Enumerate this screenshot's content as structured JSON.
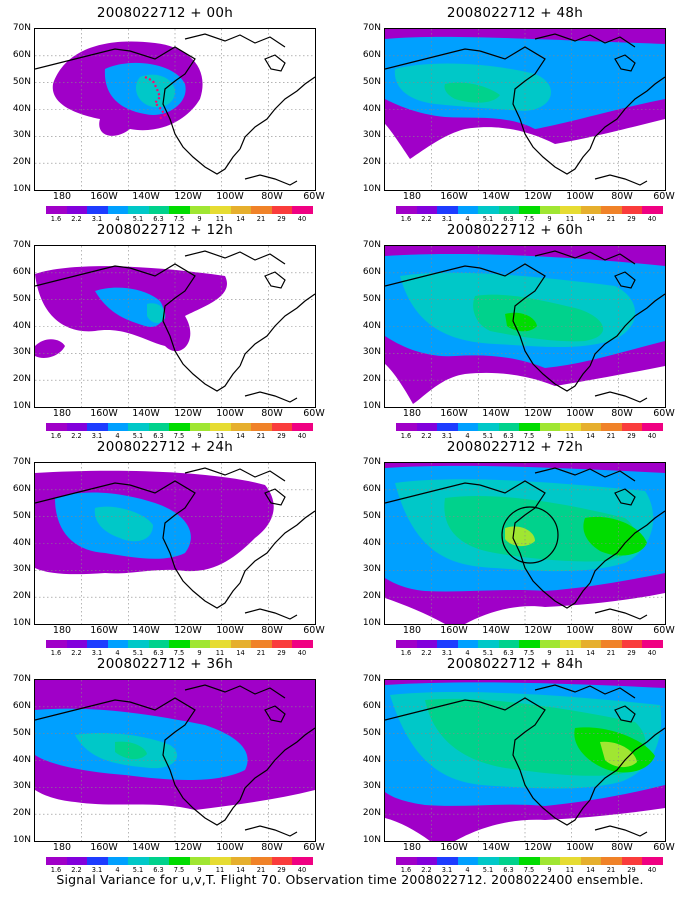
{
  "panels": [
    {
      "title": "2008022712 + 00h",
      "lead": 0
    },
    {
      "title": "2008022712 + 48h",
      "lead": 48
    },
    {
      "title": "2008022712 + 12h",
      "lead": 12
    },
    {
      "title": "2008022712 + 60h",
      "lead": 60
    },
    {
      "title": "2008022712 + 24h",
      "lead": 24
    },
    {
      "title": "2008022712 + 72h",
      "lead": 72
    },
    {
      "title": "2008022712 + 36h",
      "lead": 36
    },
    {
      "title": "2008022712 + 84h",
      "lead": 84
    }
  ],
  "lat_labels": [
    "70N",
    "60N",
    "50N",
    "40N",
    "30N",
    "20N",
    "10N"
  ],
  "lon_labels": [
    "180",
    "160W",
    "140W",
    "120W",
    "100W",
    "80W",
    "60W"
  ],
  "colorbar": {
    "labels": [
      "1.6",
      "2.2",
      "3.1",
      "4",
      "5.1",
      "6.3",
      "7.5",
      "9",
      "11",
      "14",
      "21",
      "29",
      "40"
    ],
    "colors": [
      "#a000c8",
      "#8200dc",
      "#1e3cff",
      "#00a0ff",
      "#00c8c8",
      "#00d28c",
      "#00dc00",
      "#a0e632",
      "#e6dc32",
      "#e6af2d",
      "#f08228",
      "#fa3c3c",
      "#f00082"
    ]
  },
  "caption": "Signal Variance for u,v,T. Flight 70. Observation time 2008022712. 2008022400 ensemble.",
  "chart_data": {
    "type": "heatmap",
    "variable": "Signal Variance for u,v,T",
    "domain": {
      "lon_range": [
        "180",
        "60W"
      ],
      "lat_range": [
        "10N",
        "70N"
      ]
    },
    "contour_levels": [
      1.6,
      2.2,
      3.1,
      4,
      5.1,
      6.3,
      7.5,
      9,
      11,
      14,
      21,
      29,
      40
    ],
    "observation_point": "2008022712",
    "ensemble": "2008022400",
    "forecast_leads_h": [
      0,
      12,
      24,
      36,
      48,
      60,
      72,
      84
    ],
    "max_level_by_lead": {
      "0": 4,
      "12": 4,
      "24": 4,
      "36": 4,
      "48": 6.3,
      "60": 7.5,
      "72": 9,
      "84": 9
    },
    "highlight_circle_lead_h": 72
  }
}
